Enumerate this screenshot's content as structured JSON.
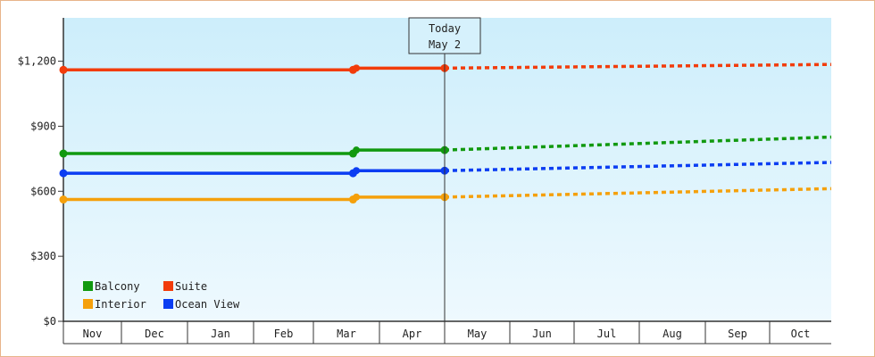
{
  "chart_data": {
    "type": "line",
    "y_ticks": [
      "$0",
      "$300",
      "$600",
      "$900",
      "$1,200"
    ],
    "ylim": [
      0,
      1400
    ],
    "months": [
      "Nov",
      "Dec",
      "Jan",
      "Feb",
      "Mar",
      "Apr",
      "May",
      "Jun",
      "Jul",
      "Aug",
      "Sep",
      "Oct"
    ],
    "today": {
      "line1": "Today",
      "line2": "May 2",
      "x": 6.0
    },
    "grid": false,
    "legend_position": "bottom-left",
    "series": [
      {
        "name": "Suite",
        "color": "#f23c0b",
        "history": [
          [
            0.0,
            1160
          ],
          [
            4.6,
            1160
          ],
          [
            4.65,
            1168
          ],
          [
            6.0,
            1168
          ]
        ],
        "forecast": [
          [
            6.0,
            1168
          ],
          [
            12.0,
            1185
          ]
        ]
      },
      {
        "name": "Balcony",
        "color": "#11990f",
        "history": [
          [
            0.0,
            774
          ],
          [
            4.6,
            774
          ],
          [
            4.65,
            790
          ],
          [
            6.0,
            790
          ]
        ],
        "forecast": [
          [
            6.0,
            790
          ],
          [
            12.0,
            850
          ]
        ]
      },
      {
        "name": "Ocean View",
        "color": "#0b3df2",
        "history": [
          [
            0.0,
            683
          ],
          [
            4.6,
            683
          ],
          [
            4.65,
            695
          ],
          [
            6.0,
            695
          ]
        ],
        "forecast": [
          [
            6.0,
            695
          ],
          [
            12.0,
            733
          ]
        ]
      },
      {
        "name": "Interior",
        "color": "#f5a00b",
        "history": [
          [
            0.0,
            562
          ],
          [
            4.6,
            562
          ],
          [
            4.65,
            573
          ],
          [
            6.0,
            573
          ]
        ],
        "forecast": [
          [
            6.0,
            573
          ],
          [
            12.0,
            612
          ]
        ]
      }
    ],
    "markers": [
      0.0,
      4.6,
      6.0
    ]
  }
}
